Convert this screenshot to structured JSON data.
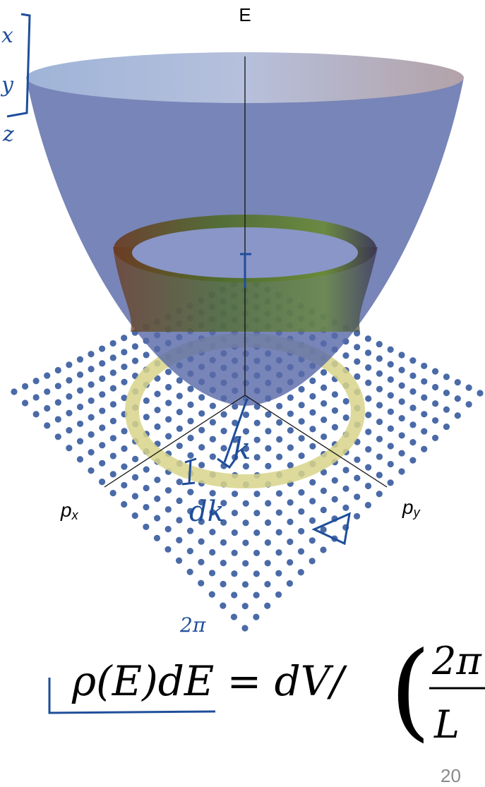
{
  "axes": {
    "vertical": "E",
    "left": "p",
    "left_sub": "x",
    "right": "p",
    "right_sub": "y"
  },
  "formula": {
    "lhs": "ρ(E)dE = dV/",
    "numerator": "2π",
    "denominator": "L"
  },
  "handwriting": {
    "k": "k",
    "dk": "dk",
    "two_pi": "2π",
    "x": "x",
    "y": "y",
    "z": "z"
  },
  "page_number": "20"
}
